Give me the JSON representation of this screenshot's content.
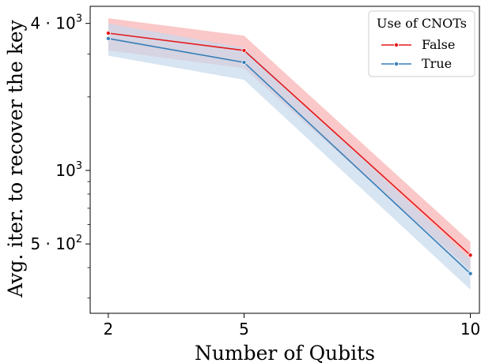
{
  "chart_data": {
    "type": "line",
    "xlabel": "Number of Qubits",
    "ylabel": "Avg. iter. to recover the key",
    "x": [
      2,
      5,
      10
    ],
    "x_ticks": [
      "2",
      "5",
      "10"
    ],
    "xlim": [
      1.6,
      10.2
    ],
    "yscale": "log",
    "ylim": [
      260,
      4700
    ],
    "y_ticks": [
      {
        "value": 4000,
        "base": "4 · 10",
        "exp": "3"
      },
      {
        "value": 1000,
        "base": "10",
        "exp": "3"
      },
      {
        "value": 500,
        "base": "5 · 10",
        "exp": "2"
      }
    ],
    "legend": {
      "title": "Use of CNOTs",
      "placement": "top-right"
    },
    "series": [
      {
        "name": "False",
        "color": "#e41a1c",
        "band_color": "#f8b5b5",
        "values": [
          3650,
          3100,
          450
        ],
        "ci_low": [
          3100,
          2620,
          390
        ],
        "ci_high": [
          4200,
          3560,
          510
        ]
      },
      {
        "name": "True",
        "color": "#377eb8",
        "band_color": "#c6d9ec",
        "values": [
          3470,
          2770,
          378
        ],
        "ci_low": [
          2950,
          2350,
          325
        ],
        "ci_high": [
          4000,
          3180,
          432
        ]
      }
    ]
  }
}
